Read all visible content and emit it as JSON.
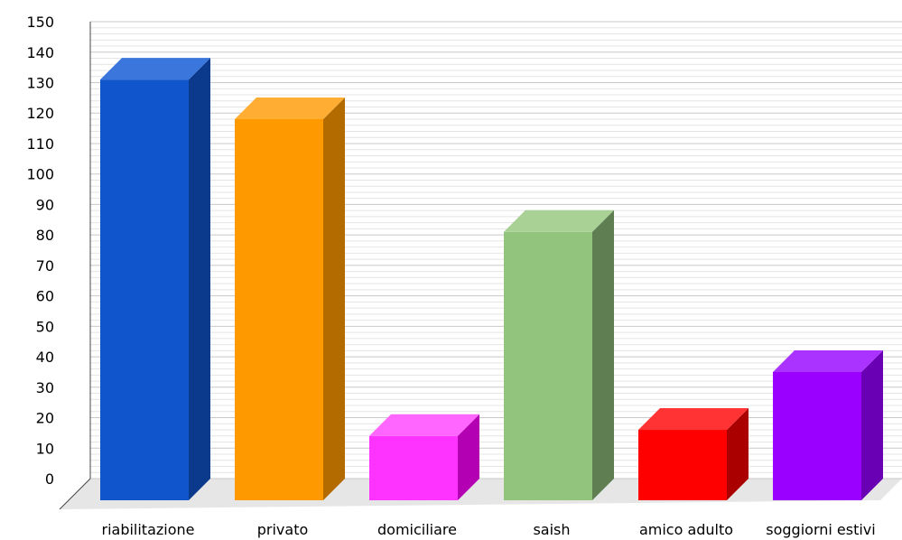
{
  "chart_data": {
    "type": "bar",
    "style": "3d",
    "title": "",
    "xlabel": "",
    "ylabel": "",
    "ylim": [
      0,
      150
    ],
    "ytick_step": 10,
    "grid": true,
    "legend": "none",
    "categories": [
      "riabilitazione",
      "privato",
      "domiciliare",
      "saish",
      "amico adulto",
      "soggiorni estivi"
    ],
    "values": [
      131,
      118,
      14,
      81,
      16,
      35
    ],
    "colors": [
      {
        "front": "#1155cc",
        "side": "#0b3a8c",
        "top": "#3a76db"
      },
      {
        "front": "#ff9900",
        "side": "#b36b00",
        "top": "#ffad33"
      },
      {
        "front": "#ff33ff",
        "side": "#b300b3",
        "top": "#ff66ff"
      },
      {
        "front": "#93c47d",
        "side": "#5f7f52",
        "top": "#a9d195"
      },
      {
        "front": "#ff0000",
        "side": "#aa0000",
        "top": "#ff3333"
      },
      {
        "front": "#9900ff",
        "side": "#6a00b3",
        "top": "#aa33ff"
      }
    ]
  }
}
